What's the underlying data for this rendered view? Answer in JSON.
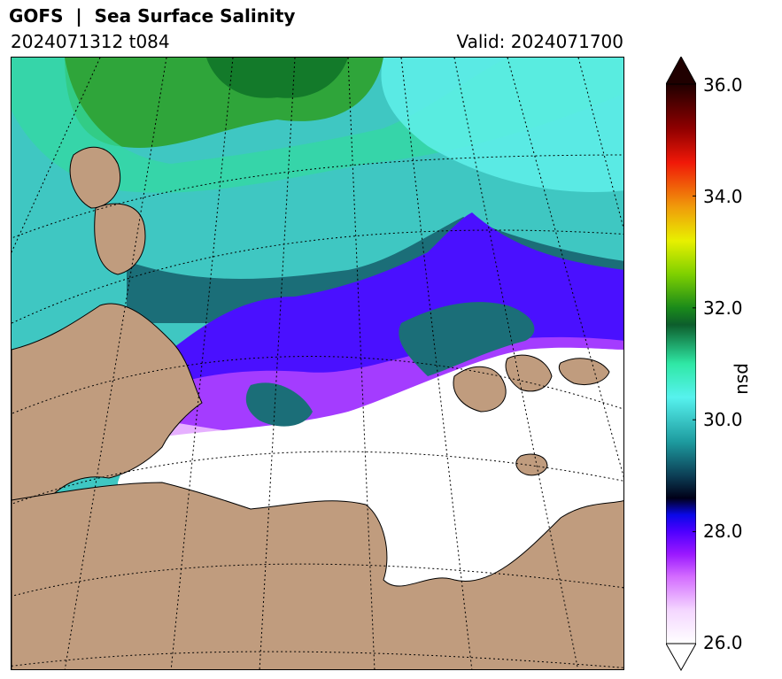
{
  "header": {
    "title": "GOFS  |  Sea Surface Salinity",
    "run": "2024071312 t084",
    "valid": "Valid: 2024071700"
  },
  "map": {
    "region": "Kara Sea and Arctic coast",
    "land_color": "#c09c7e",
    "coast_color": "#000000",
    "graticule_style": "dotted"
  },
  "colorbar": {
    "unit": "psu",
    "min": 26.0,
    "max": 36.0,
    "extend": "both",
    "ticks": [
      "36.0",
      "34.0",
      "32.0",
      "30.0",
      "28.0",
      "26.0"
    ],
    "tick_values": [
      36,
      34,
      32,
      30,
      28,
      26
    ],
    "stops": [
      {
        "v": 26.0,
        "c": "#ffffff"
      },
      {
        "v": 26.6,
        "c": "#f4d6ff"
      },
      {
        "v": 27.2,
        "c": "#d36bff"
      },
      {
        "v": 27.6,
        "c": "#9a18ff"
      },
      {
        "v": 28.0,
        "c": "#4e00ff"
      },
      {
        "v": 28.3,
        "c": "#0a08e8"
      },
      {
        "v": 28.6,
        "c": "#000018"
      },
      {
        "v": 29.0,
        "c": "#0c3e55"
      },
      {
        "v": 29.6,
        "c": "#1d9a9e"
      },
      {
        "v": 30.4,
        "c": "#56f2ee"
      },
      {
        "v": 31.0,
        "c": "#2fe8a5"
      },
      {
        "v": 31.7,
        "c": "#0d5e2c"
      },
      {
        "v": 32.0,
        "c": "#1a8a1a"
      },
      {
        "v": 32.6,
        "c": "#7ed000"
      },
      {
        "v": 33.2,
        "c": "#e8f000"
      },
      {
        "v": 33.8,
        "c": "#f09c0a"
      },
      {
        "v": 34.6,
        "c": "#f01808"
      },
      {
        "v": 35.2,
        "c": "#900000"
      },
      {
        "v": 36.0,
        "c": "#200000"
      }
    ]
  }
}
